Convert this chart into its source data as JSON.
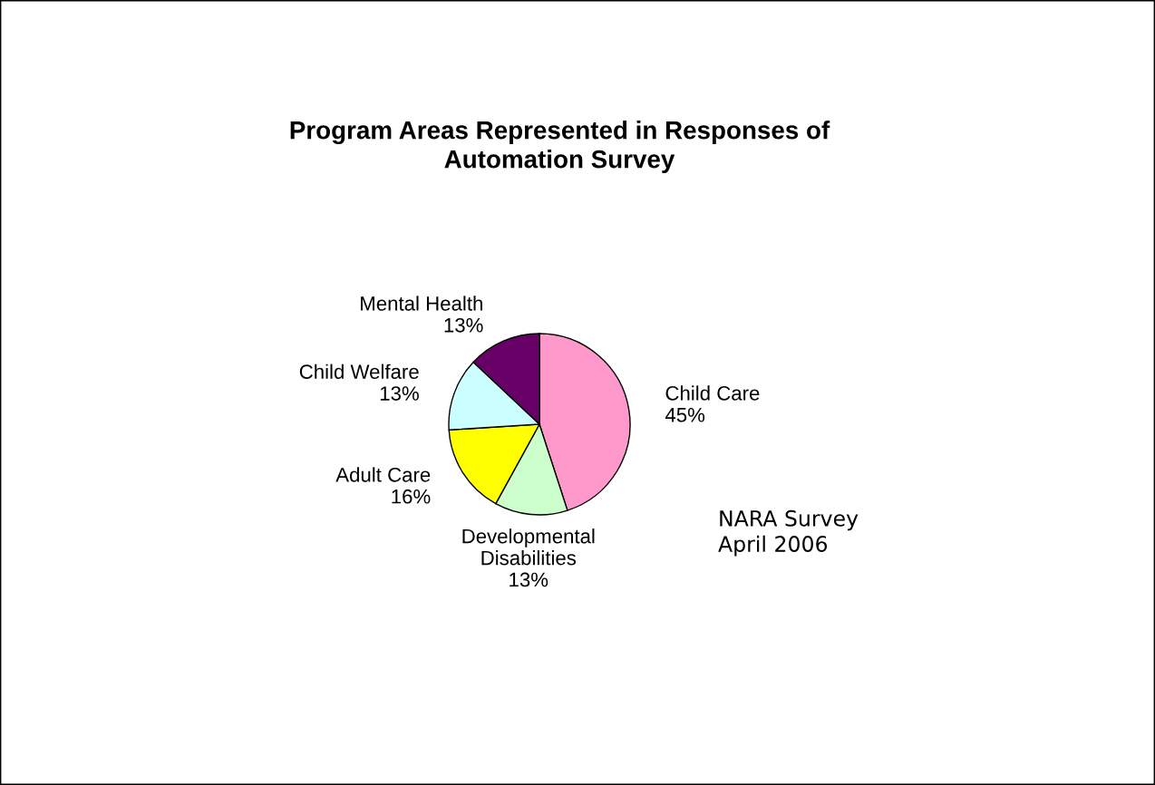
{
  "chart_data": {
    "type": "pie",
    "title": "Program Areas Represented in Responses of\nAutomation Survey",
    "categories": [
      "Child Care",
      "Developmental\nDisabilities",
      "Adult Care",
      "Child Welfare",
      "Mental Health"
    ],
    "values": [
      45,
      13,
      16,
      13,
      13
    ],
    "value_labels": [
      "45%",
      "13%",
      "16%",
      "13%",
      "13%"
    ],
    "colors": [
      "#ff99cc",
      "#ccffcc",
      "#ffff00",
      "#ccffff",
      "#660066"
    ],
    "annotations": [
      "NARA Survey\nApril 2006"
    ]
  }
}
